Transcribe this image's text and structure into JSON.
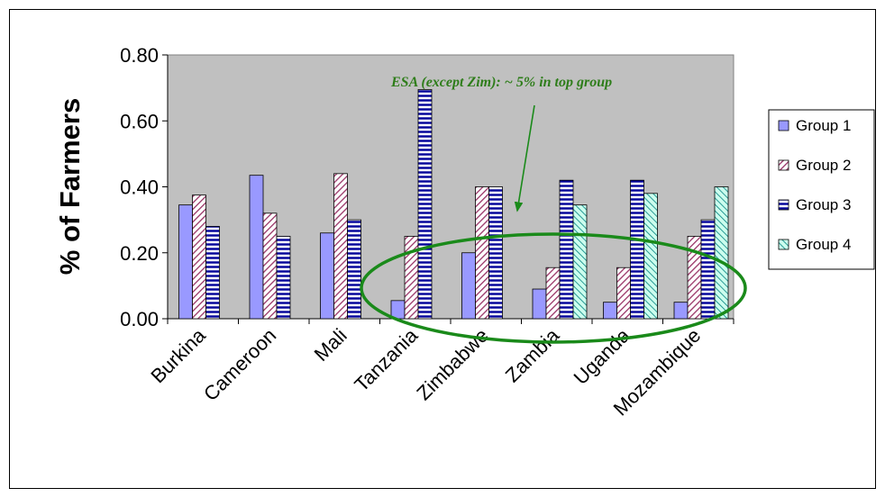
{
  "chart_data": {
    "type": "bar",
    "title": "",
    "xlabel": "",
    "ylabel": "% of Farmers",
    "ylim": [
      0,
      0.8
    ],
    "yticks": [
      "0.00",
      "0.20",
      "0.40",
      "0.60",
      "0.80"
    ],
    "ytick_values": [
      0,
      0.2,
      0.4,
      0.6,
      0.8
    ],
    "grid": false,
    "legend_position": "right",
    "categories": [
      "Burkina",
      "Cameroon",
      "Mali",
      "Tanzania",
      "Zimbabwe",
      "Zambia",
      "Uganda",
      "Mozambique"
    ],
    "series": [
      {
        "name": "Group 1",
        "values": [
          0.345,
          0.435,
          0.26,
          0.055,
          0.2,
          0.09,
          0.05,
          0.05
        ]
      },
      {
        "name": "Group 2",
        "values": [
          0.375,
          0.32,
          0.44,
          0.25,
          0.4,
          0.155,
          0.155,
          0.25
        ]
      },
      {
        "name": "Group 3",
        "values": [
          0.28,
          0.25,
          0.3,
          0.695,
          0.4,
          0.42,
          0.42,
          0.3
        ]
      },
      {
        "name": "Group 4",
        "values": [
          null,
          null,
          null,
          null,
          null,
          0.345,
          0.38,
          0.4
        ]
      }
    ],
    "annotations": [
      {
        "text": "ESA (except Zim): ~ 5% in top group",
        "color": "#2e7d1a"
      }
    ],
    "colors": {
      "plot_bg": "#c0c0c0",
      "group1_fill": "#9999ff",
      "group2_stripe": "#993366",
      "group3_stripe": "#000099",
      "group4_stripe": "#008080",
      "annotation": "#2e7d1a",
      "ellipse": "#1a8a1a"
    }
  }
}
